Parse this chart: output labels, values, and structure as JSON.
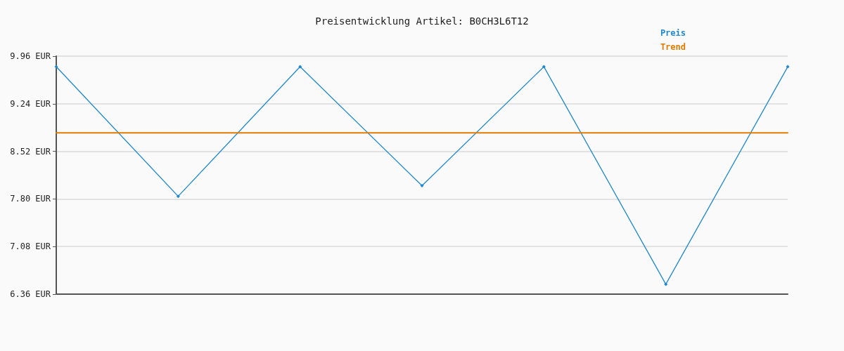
{
  "chart_data": {
    "type": "line",
    "title": "Preisentwicklung Artikel: B0CH3L6T12",
    "categories": [
      null,
      null,
      null,
      null,
      null,
      null,
      null
    ],
    "series": [
      {
        "name": "Preis",
        "color": "#1f88d0",
        "marker": "diamond",
        "values": [
          9.8,
          7.84,
          9.8,
          8.0,
          9.8,
          6.51,
          9.8
        ]
      },
      {
        "name": "Trend",
        "color": "#e07b00",
        "marker": "none",
        "values": [
          8.8,
          8.8,
          8.8,
          8.8,
          8.8,
          8.8,
          8.8
        ]
      }
    ],
    "ylim": [
      6.36,
      9.96
    ],
    "yticks": [
      {
        "value": 6.36,
        "label": "6.36 EUR"
      },
      {
        "value": 7.08,
        "label": "7.08 EUR"
      },
      {
        "value": 7.8,
        "label": "7.80 EUR"
      },
      {
        "value": 8.52,
        "label": "8.52 EUR"
      },
      {
        "value": 9.24,
        "label": "9.24 EUR"
      },
      {
        "value": 9.96,
        "label": "9.96 EUR"
      }
    ],
    "grid": "y",
    "legend": "top right",
    "line_style": "solid"
  }
}
